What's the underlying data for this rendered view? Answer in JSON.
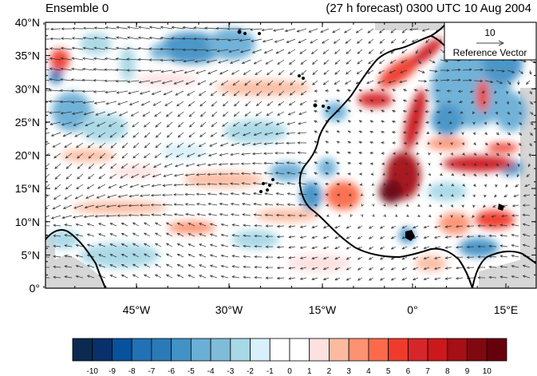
{
  "header": {
    "left_title": "Ensemble 0",
    "right_title": "(27 h forecast) 0300 UTC 10 Aug 2004"
  },
  "map": {
    "lat_labels": [
      "40°N",
      "35°N",
      "30°N",
      "25°N",
      "20°N",
      "15°N",
      "10°N",
      "5°N",
      "0°"
    ],
    "lon_labels": [
      "45°W",
      "30°W",
      "15°W",
      "0°",
      "15°E"
    ],
    "colors": {
      "land_mask": "#d9d9d9",
      "coast": "#000000",
      "vectors": "#333333"
    }
  },
  "reference_vector": {
    "magnitude": "10",
    "label": "Reference Vector"
  },
  "colorbar": {
    "labels": [
      "-10",
      "-9",
      "-8",
      "-7",
      "-6",
      "-5",
      "-4",
      "-3",
      "-2",
      "-1",
      "0",
      "1",
      "2",
      "3",
      "4",
      "5",
      "6",
      "7",
      "8",
      "9",
      "10"
    ],
    "colors": [
      "#0b2a4f",
      "#08306b",
      "#08519c",
      "#2171b5",
      "#2a7ab8",
      "#4292c6",
      "#6baed6",
      "#7fbcd8",
      "#a8d8e6",
      "#d7f0fa",
      "#ffffff",
      "#ffffff",
      "#fde0e0",
      "#fcbba1",
      "#fc9272",
      "#fb6a4a",
      "#ef3b2c",
      "#d7262b",
      "#cb181d",
      "#a50f15",
      "#800810",
      "#67000d"
    ]
  }
}
